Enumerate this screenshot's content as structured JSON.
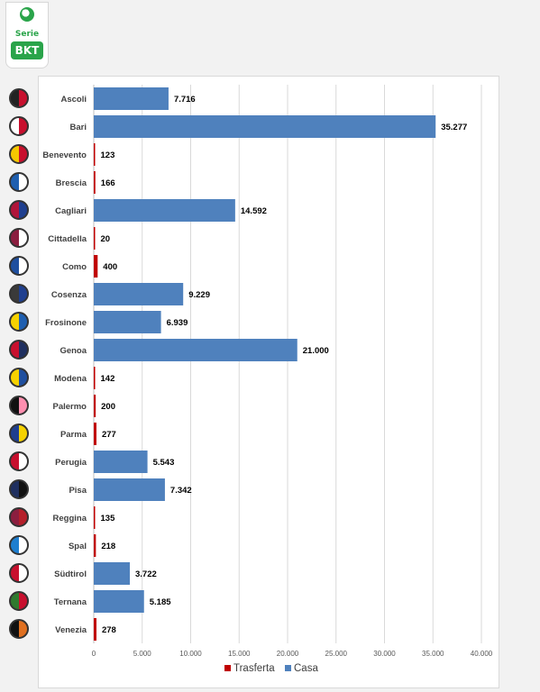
{
  "brand": {
    "serie": "Serie",
    "bkt": "BKT",
    "colors": [
      "#2aa44a",
      "#ffffff"
    ]
  },
  "chart_data": {
    "type": "bar",
    "orientation": "horizontal",
    "categories": [
      "Ascoli",
      "Bari",
      "Benevento",
      "Brescia",
      "Cagliari",
      "Cittadella",
      "Como",
      "Cosenza",
      "Frosinone",
      "Genoa",
      "Modena",
      "Palermo",
      "Parma",
      "Perugia",
      "Pisa",
      "Reggina",
      "Spal",
      "Südtirol",
      "Ternana",
      "Venezia"
    ],
    "values": [
      7716,
      35277,
      123,
      166,
      14592,
      20,
      400,
      9229,
      6939,
      21000,
      142,
      200,
      277,
      5543,
      7342,
      135,
      218,
      3722,
      5185,
      278
    ],
    "value_labels": [
      "7.716",
      "35.277",
      "123",
      "166",
      "14.592",
      "20",
      "400",
      "9.229",
      "6.939",
      "21.000",
      "142",
      "200",
      "277",
      "5.543",
      "7.342",
      "135",
      "218",
      "3.722",
      "5.185",
      "278"
    ],
    "bar_series": [
      "Casa",
      "Casa",
      "Trasferta",
      "Trasferta",
      "Casa",
      "Trasferta",
      "Trasferta",
      "Casa",
      "Casa",
      "Casa",
      "Trasferta",
      "Trasferta",
      "Trasferta",
      "Casa",
      "Casa",
      "Trasferta",
      "Trasferta",
      "Casa",
      "Casa",
      "Trasferta"
    ],
    "series": [
      {
        "name": "Trasferta",
        "color": "#c00000"
      },
      {
        "name": "Casa",
        "color": "#4f81bd"
      }
    ],
    "xlim": [
      0,
      40000
    ],
    "x_ticks": [
      0,
      5000,
      10000,
      15000,
      20000,
      25000,
      30000,
      35000,
      40000
    ],
    "x_tick_labels": [
      "0",
      "5.000",
      "10.000",
      "15.000",
      "20.000",
      "25.000",
      "30.000",
      "35.000",
      "40.000"
    ],
    "grid": "vertical",
    "legend": "bottom",
    "title": "",
    "xlabel": "",
    "ylabel": ""
  },
  "team_logo_colors": [
    [
      "#222222",
      "#c8102e"
    ],
    [
      "#ffffff",
      "#c8102e"
    ],
    [
      "#f6c700",
      "#c8102e"
    ],
    [
      "#1f5fb0",
      "#ffffff"
    ],
    [
      "#b0153a",
      "#1f3f8f"
    ],
    [
      "#8b1e3f",
      "#ffffff"
    ],
    [
      "#1f4f9f",
      "#ffffff"
    ],
    [
      "#3a3a3a",
      "#1f3f8f"
    ],
    [
      "#f6d200",
      "#1f5fb0"
    ],
    [
      "#c8102e",
      "#1f2f5f"
    ],
    [
      "#f6d200",
      "#1f4f9f"
    ],
    [
      "#111111",
      "#ff8fb0"
    ],
    [
      "#1f3f8f",
      "#f6d200"
    ],
    [
      "#c8102e",
      "#ffffff"
    ],
    [
      "#1f2f5f",
      "#111111"
    ],
    [
      "#8b1e3f",
      "#b51f2a"
    ],
    [
      "#1f7fd0",
      "#ffffff"
    ],
    [
      "#c8102e",
      "#ffffff"
    ],
    [
      "#2f7a2f",
      "#c8102e"
    ],
    [
      "#111111",
      "#e07020"
    ]
  ]
}
